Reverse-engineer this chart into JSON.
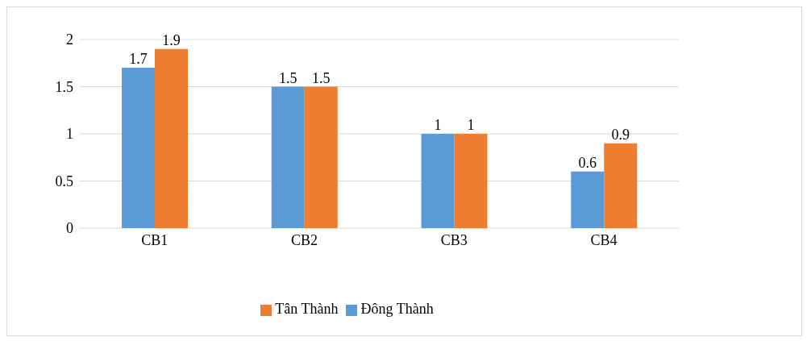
{
  "chart_data": {
    "type": "bar",
    "categories": [
      "CB1",
      "CB2",
      "CB3",
      "CB4"
    ],
    "series": [
      {
        "name": "Đông Thành",
        "color": "#5b9bd5",
        "values": [
          1.7,
          1.5,
          1,
          0.6
        ]
      },
      {
        "name": "Tân Thành",
        "color": "#ed7d31",
        "values": [
          1.9,
          1.5,
          1,
          0.9
        ]
      }
    ],
    "ylim": [
      0,
      2
    ],
    "yticks": [
      0,
      0.5,
      1,
      1.5,
      2
    ],
    "grid": "y",
    "data_labels": true,
    "legend": "bottom"
  }
}
